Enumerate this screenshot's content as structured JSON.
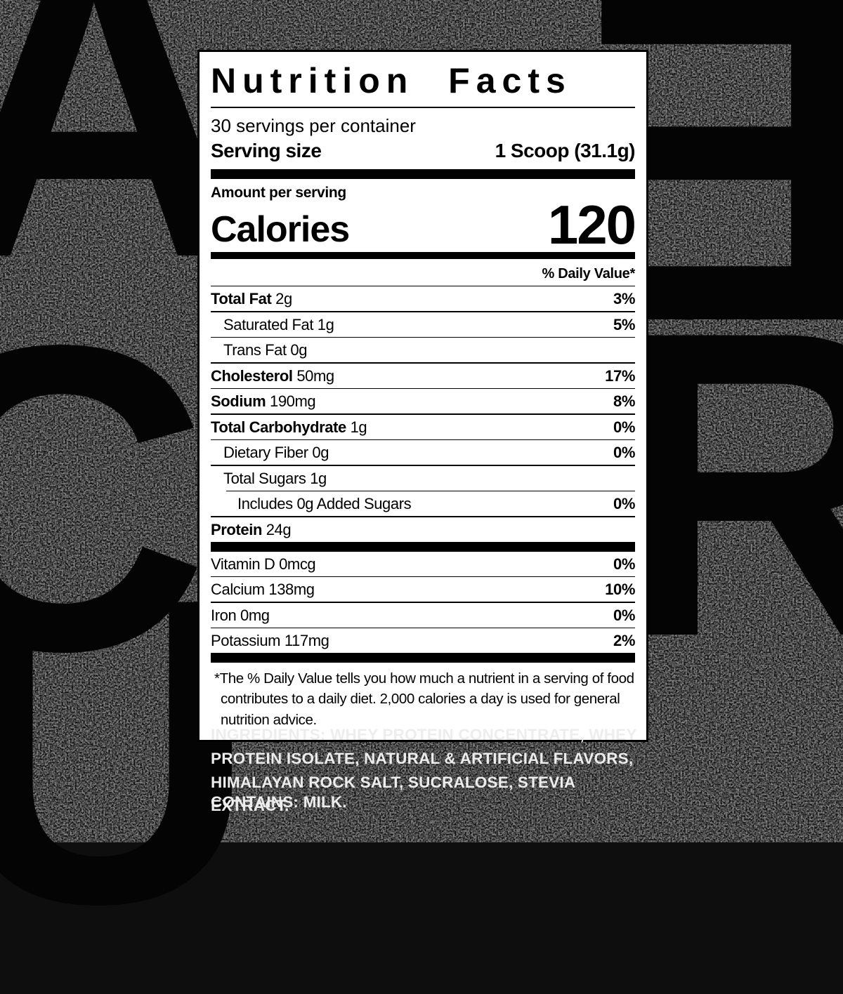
{
  "background": {
    "letters": [
      "A",
      "E",
      "C",
      "R",
      "U"
    ]
  },
  "label": {
    "title": "Nutrition Facts",
    "servings_per_container": "30 servings per container",
    "serving_size_label": "Serving size",
    "serving_size_value": "1 Scoop (31.1g)",
    "amount_per_serving": "Amount per serving",
    "calories_label": "Calories",
    "calories_value": "120",
    "daily_value_header": "% Daily Value*",
    "nutrients": [
      {
        "bold_part": "Total Fat",
        "rest": "2g",
        "dv": "3%",
        "indent": 0,
        "rule_indent": false
      },
      {
        "bold_part": "",
        "rest": "Saturated Fat 1g",
        "dv": "5%",
        "indent": 1,
        "rule_indent": false
      },
      {
        "bold_part": "",
        "rest": "Trans Fat 0g",
        "dv": "",
        "indent": 1,
        "rule_indent": false
      },
      {
        "bold_part": "Cholesterol",
        "rest": "50mg",
        "dv": "17%",
        "indent": 0,
        "rule_indent": false
      },
      {
        "bold_part": "Sodium",
        "rest": "190mg",
        "dv": "8%",
        "indent": 0,
        "rule_indent": false
      },
      {
        "bold_part": "Total Carbohydrate",
        "rest": "1g",
        "dv": "0%",
        "indent": 0,
        "rule_indent": false
      },
      {
        "bold_part": "",
        "rest": "Dietary Fiber 0g",
        "dv": "0%",
        "indent": 1,
        "rule_indent": false
      },
      {
        "bold_part": "",
        "rest": "Total Sugars 1g",
        "dv": "",
        "indent": 1,
        "rule_indent": false
      },
      {
        "bold_part": "",
        "rest": "Includes 0g Added Sugars",
        "dv": "0%",
        "indent": 2,
        "rule_indent": true
      },
      {
        "bold_part": "Protein",
        "rest": "24g",
        "dv": "",
        "indent": 0,
        "rule_indent": false
      }
    ],
    "vitamins": [
      {
        "bold_part": "",
        "rest": "Vitamin D 0mcg",
        "dv": "0%"
      },
      {
        "bold_part": "",
        "rest": "Calcium 138mg",
        "dv": "10%"
      },
      {
        "bold_part": "",
        "rest": "Iron 0mg",
        "dv": "0%"
      },
      {
        "bold_part": "",
        "rest": "Potassium 117mg",
        "dv": "2%"
      }
    ],
    "footnote": "*The % Daily Value tells you how much a nutrient in a serving of food contributes to a daily diet. 2,000 calories a day is used for general nutrition advice."
  },
  "ingredients": {
    "label": "INGREDIENTS:",
    "text": " WHEY PROTEIN CONCENTRATE, WHEY PROTEIN ISOLATE, NATURAL & ARTIFICIAL FLAVORS, HIMALAYAN ROCK SALT, SUCRALOSE, STEVIA EXTRACT."
  },
  "contains": {
    "label": "CONTAINS:",
    "text": " MILK."
  },
  "colors": {
    "page_background": "#0e0e0e",
    "speckle": "#555555",
    "label_background": "#ffffff",
    "label_text": "#000000",
    "light_text": "#ededed"
  }
}
